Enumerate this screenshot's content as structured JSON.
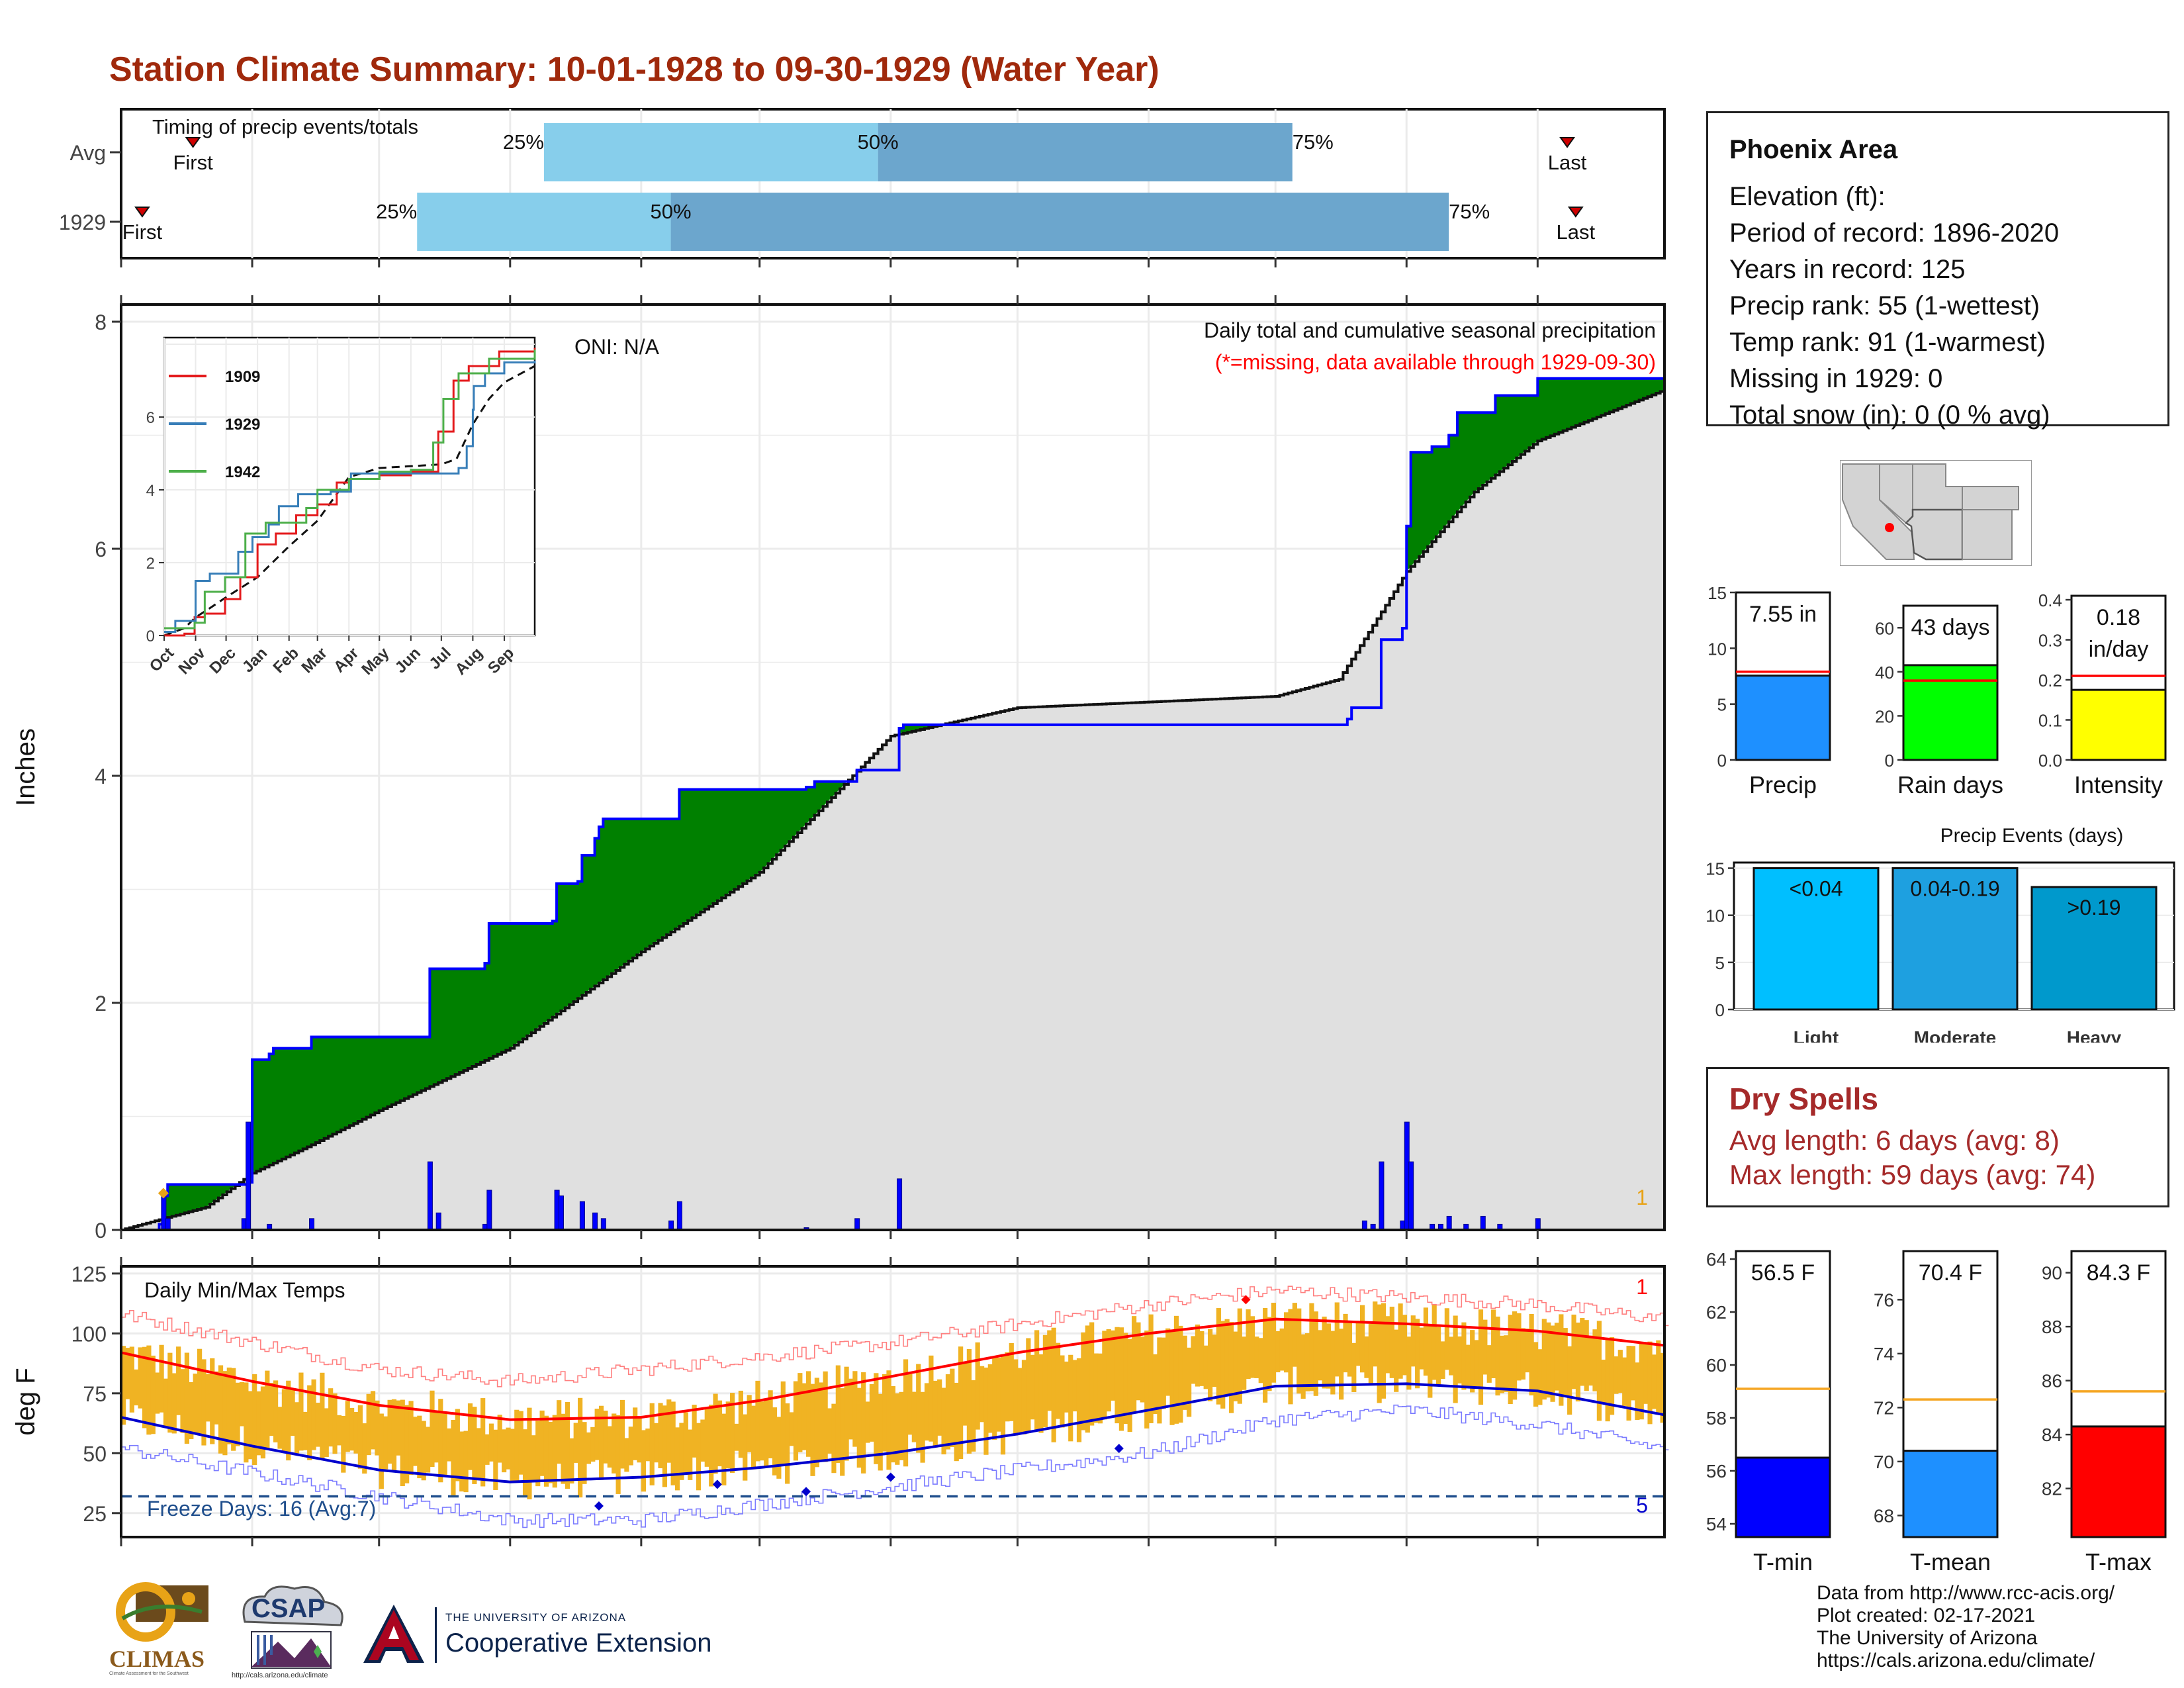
{
  "header": {
    "title": "Station Climate Summary: 10-01-1928 to 09-30-1929 (Water Year)"
  },
  "timing": {
    "panel_label": "Timing of precip events/totals",
    "rows": [
      {
        "label": "Avg",
        "first_label": "First",
        "last_label": "Last",
        "first_day": 17,
        "last_day": 342,
        "p25_day": 100,
        "p50_day": 179,
        "p75_day": 277,
        "p25": "25%",
        "p50": "50%",
        "p75": "75%"
      },
      {
        "label": "1929",
        "first_label": "First",
        "last_label": "Last",
        "first_day": 5,
        "last_day": 344,
        "p25_day": 70,
        "p50_day": 130,
        "p75_day": 314,
        "p25": "25%",
        "p50": "50%",
        "p75": "75%"
      }
    ]
  },
  "colors": {
    "light_blue": "#87ceeb",
    "mid_blue": "#6ca6cd",
    "above_fill": "#008000",
    "below_fill": "#7f5200",
    "obs_line": "#0000ff",
    "avg_fill": "#e0e0e0",
    "temp_band": "#f0b323",
    "max_line": "#ff0000",
    "min_line": "#0000cd",
    "title_color": "#a0290c",
    "dry_color": "#a52a2a"
  },
  "chart_data": [
    {
      "type": "area",
      "name": "precip",
      "ylabel": "Inches",
      "ylim": [
        0,
        8
      ],
      "yticks": [
        "0",
        "2",
        "4",
        "6",
        "8"
      ],
      "month_labels": [
        "Oct",
        "Nov",
        "Dec",
        "Jan",
        "Feb",
        "Mar",
        "Apr",
        "May",
        "Jun",
        "Jul",
        "Aug",
        "Sep"
      ],
      "month_start_days": [
        0,
        31,
        61,
        92,
        123,
        151,
        182,
        212,
        243,
        273,
        304,
        335
      ],
      "oni": "ONI: N/A",
      "note1": "Daily total and cumulative seasonal precipitation",
      "note2": "(*=missing, data available through 1929-09-30)",
      "corner_label": "1",
      "cumulative_obs": [
        [
          0,
          0
        ],
        [
          9,
          0.05
        ],
        [
          10,
          0.3
        ],
        [
          11,
          0.4
        ],
        [
          29,
          0.4
        ],
        [
          30,
          0.42
        ],
        [
          31,
          1.5
        ],
        [
          35,
          1.55
        ],
        [
          36,
          1.6
        ],
        [
          44,
          1.6
        ],
        [
          45,
          1.7
        ],
        [
          72,
          1.7
        ],
        [
          73,
          2.3
        ],
        [
          86,
          2.35
        ],
        [
          87,
          2.7
        ],
        [
          102,
          2.72
        ],
        [
          103,
          3.05
        ],
        [
          108,
          3.07
        ],
        [
          109,
          3.3
        ],
        [
          112,
          3.45
        ],
        [
          113,
          3.55
        ],
        [
          114,
          3.62
        ],
        [
          131,
          3.62
        ],
        [
          132,
          3.88
        ],
        [
          162,
          3.9
        ],
        [
          164,
          3.95
        ],
        [
          174,
          4.05
        ],
        [
          184,
          4.42
        ],
        [
          185,
          4.45
        ],
        [
          290,
          4.5
        ],
        [
          291,
          4.6
        ],
        [
          297,
          4.6
        ],
        [
          298,
          5.2
        ],
        [
          303,
          5.3
        ],
        [
          304,
          6.2
        ],
        [
          305,
          6.85
        ],
        [
          310,
          6.9
        ],
        [
          314,
          7.0
        ],
        [
          316,
          7.2
        ],
        [
          325,
          7.35
        ],
        [
          335,
          7.5
        ],
        [
          365,
          7.55
        ]
      ],
      "cumulative_avg": [
        [
          0,
          0
        ],
        [
          10,
          0.1
        ],
        [
          20,
          0.2
        ],
        [
          31,
          0.5
        ],
        [
          45,
          0.75
        ],
        [
          61,
          1.05
        ],
        [
          92,
          1.6
        ],
        [
          123,
          2.45
        ],
        [
          151,
          3.15
        ],
        [
          182,
          4.35
        ],
        [
          212,
          4.6
        ],
        [
          243,
          4.65
        ],
        [
          273,
          4.7
        ],
        [
          288,
          4.85
        ],
        [
          304,
          5.8
        ],
        [
          320,
          6.5
        ],
        [
          335,
          6.95
        ],
        [
          365,
          7.4
        ]
      ],
      "daily_bars": [
        [
          10,
          0.3
        ],
        [
          11,
          0.1
        ],
        [
          29,
          0.1
        ],
        [
          30,
          0.95
        ],
        [
          35,
          0.05
        ],
        [
          45,
          0.1
        ],
        [
          73,
          0.6
        ],
        [
          75,
          0.15
        ],
        [
          86,
          0.05
        ],
        [
          87,
          0.35
        ],
        [
          103,
          0.35
        ],
        [
          104,
          0.3
        ],
        [
          109,
          0.25
        ],
        [
          112,
          0.15
        ],
        [
          114,
          0.1
        ],
        [
          130,
          0.08
        ],
        [
          132,
          0.25
        ],
        [
          162,
          0.02
        ],
        [
          174,
          0.1
        ],
        [
          184,
          0.45
        ],
        [
          294,
          0.08
        ],
        [
          296,
          0.05
        ],
        [
          298,
          0.6
        ],
        [
          303,
          0.08
        ],
        [
          304,
          0.95
        ],
        [
          305,
          0.6
        ],
        [
          310,
          0.05
        ],
        [
          312,
          0.05
        ],
        [
          314,
          0.12
        ],
        [
          318,
          0.05
        ],
        [
          322,
          0.12
        ],
        [
          326,
          0.05
        ],
        [
          335,
          0.1
        ]
      ],
      "inset": {
        "ylim": [
          0,
          8
        ],
        "yticks": [
          "0",
          "2",
          "4",
          "6"
        ],
        "month_labels": [
          "Oct",
          "Nov",
          "Dec",
          "Jan",
          "Feb",
          "Mar",
          "Apr",
          "May",
          "Jun",
          "Jul",
          "Aug",
          "Sep"
        ],
        "series": [
          {
            "name": "1909",
            "color": "#e41a1c",
            "points": [
              [
                0,
                0
              ],
              [
                20,
                0.05
              ],
              [
                30,
                0.5
              ],
              [
                40,
                0.6
              ],
              [
                60,
                1.0
              ],
              [
                75,
                1.6
              ],
              [
                92,
                2.5
              ],
              [
                110,
                2.8
              ],
              [
                130,
                3.3
              ],
              [
                151,
                3.6
              ],
              [
                170,
                4.2
              ],
              [
                182,
                4.3
              ],
              [
                212,
                4.4
              ],
              [
                243,
                4.5
              ],
              [
                255,
                4.5
              ],
              [
                270,
                5.6
              ],
              [
                285,
                7.0
              ],
              [
                300,
                7.4
              ],
              [
                330,
                7.8
              ],
              [
                365,
                7.9
              ]
            ]
          },
          {
            "name": "1929",
            "color": "#377eb8",
            "points": [
              [
                0,
                0.1
              ],
              [
                9,
                0.1
              ],
              [
                11,
                0.4
              ],
              [
                30,
                0.4
              ],
              [
                31,
                1.5
              ],
              [
                45,
                1.7
              ],
              [
                73,
                2.3
              ],
              [
                87,
                2.7
              ],
              [
                103,
                3.05
              ],
              [
                113,
                3.55
              ],
              [
                132,
                3.88
              ],
              [
                164,
                3.95
              ],
              [
                184,
                4.45
              ],
              [
                290,
                4.6
              ],
              [
                298,
                5.2
              ],
              [
                304,
                6.2
              ],
              [
                305,
                6.85
              ],
              [
                316,
                7.2
              ],
              [
                335,
                7.5
              ],
              [
                365,
                7.55
              ]
            ]
          },
          {
            "name": "1942",
            "color": "#4daf4a",
            "points": [
              [
                0,
                0.2
              ],
              [
                30,
                0.35
              ],
              [
                40,
                1.2
              ],
              [
                60,
                1.6
              ],
              [
                80,
                2.8
              ],
              [
                100,
                3.1
              ],
              [
                140,
                3.5
              ],
              [
                151,
                4.0
              ],
              [
                182,
                4.3
              ],
              [
                212,
                4.5
              ],
              [
                243,
                4.55
              ],
              [
                265,
                5.3
              ],
              [
                275,
                6.5
              ],
              [
                290,
                7.2
              ],
              [
                320,
                7.6
              ],
              [
                365,
                7.85
              ]
            ]
          }
        ]
      }
    },
    {
      "type": "area",
      "name": "temperature",
      "title": "Daily Min/Max Temps",
      "ylabel": "deg F",
      "ylim": [
        15,
        128
      ],
      "yticks": [
        "25",
        "50",
        "75",
        "100",
        "125"
      ],
      "freeze_label": "Freeze Days: 16 (Avg:7)",
      "freeze_line": 32,
      "max_corner": "1",
      "min_corner": "5",
      "max_line_knots": [
        [
          0,
          92
        ],
        [
          31,
          80
        ],
        [
          61,
          70
        ],
        [
          92,
          64
        ],
        [
          123,
          65
        ],
        [
          151,
          72
        ],
        [
          182,
          82
        ],
        [
          212,
          92
        ],
        [
          243,
          100
        ],
        [
          273,
          106
        ],
        [
          304,
          104
        ],
        [
          335,
          101
        ],
        [
          365,
          95
        ]
      ],
      "min_line_knots": [
        [
          0,
          65
        ],
        [
          31,
          53
        ],
        [
          61,
          43
        ],
        [
          92,
          38
        ],
        [
          123,
          40
        ],
        [
          151,
          44
        ],
        [
          182,
          50
        ],
        [
          212,
          58
        ],
        [
          243,
          68
        ],
        [
          273,
          78
        ],
        [
          304,
          79
        ],
        [
          335,
          76
        ],
        [
          365,
          66
        ]
      ],
      "record_max_knots": [
        [
          0,
          108
        ],
        [
          61,
          85
        ],
        [
          92,
          80
        ],
        [
          123,
          85
        ],
        [
          182,
          96
        ],
        [
          243,
          112
        ],
        [
          273,
          118
        ],
        [
          304,
          115
        ],
        [
          335,
          112
        ],
        [
          365,
          106
        ]
      ],
      "record_min_knots": [
        [
          0,
          52
        ],
        [
          61,
          32
        ],
        [
          92,
          22
        ],
        [
          123,
          22
        ],
        [
          182,
          36
        ],
        [
          243,
          50
        ],
        [
          273,
          64
        ],
        [
          304,
          68
        ],
        [
          335,
          62
        ],
        [
          365,
          52
        ]
      ]
    },
    {
      "type": "bar",
      "name": "precip-total",
      "value_label": "7.55 in",
      "category": "Precip",
      "value": 7.55,
      "avg": 7.9,
      "ylim": [
        0,
        15
      ],
      "yticks": [
        "0",
        "5",
        "10",
        "15"
      ],
      "color": "#1e90ff"
    },
    {
      "type": "bar",
      "name": "rain-days",
      "value_label": "43 days",
      "category": "Rain days",
      "value": 43,
      "avg": 36,
      "ylim": [
        0,
        70
      ],
      "yticks": [
        "0",
        "20",
        "40",
        "60"
      ],
      "color": "#00ff00"
    },
    {
      "type": "bar",
      "name": "intensity",
      "value_label": "0.18",
      "value_label2": "in/day",
      "category": "Intensity",
      "value": 0.175,
      "avg": 0.21,
      "ylim": [
        0,
        0.41
      ],
      "yticks": [
        "0.0",
        "0.1",
        "0.2",
        "0.3",
        "0.4"
      ],
      "color": "#ffff00"
    },
    {
      "type": "bar",
      "name": "precip-events",
      "title": "Precip Events (days)",
      "categories": [
        "Light",
        "Moderate",
        "Heavy"
      ],
      "bar_labels": [
        "<0.04",
        "0.04-0.19",
        ">0.19"
      ],
      "values": [
        15,
        15,
        13
      ],
      "colors": [
        "#00bfff",
        "#1ea0e0",
        "#0099cc"
      ],
      "ylim": [
        0,
        15.6
      ],
      "yticks": [
        "0",
        "5",
        "10",
        "15"
      ]
    },
    {
      "type": "bar",
      "name": "tmin",
      "value_label": "56.5 F",
      "category": "T-min",
      "value": 56.5,
      "avg": 59.1,
      "ylim": [
        53.5,
        64.3
      ],
      "yticks": [
        "54",
        "56",
        "58",
        "60",
        "62",
        "64"
      ],
      "color": "#0000ff"
    },
    {
      "type": "bar",
      "name": "tmean",
      "value_label": "70.4 F",
      "category": "T-mean",
      "value": 70.4,
      "avg": 72.3,
      "ylim": [
        67.2,
        77.8
      ],
      "yticks": [
        "68",
        "70",
        "72",
        "74",
        "76"
      ],
      "color": "#1e90ff"
    },
    {
      "type": "bar",
      "name": "tmax",
      "value_label": "84.3 F",
      "category": "T-max",
      "value": 84.3,
      "avg": 85.6,
      "ylim": [
        80.2,
        90.8
      ],
      "yticks": [
        "82",
        "84",
        "86",
        "88",
        "90"
      ],
      "color": "#ff0000"
    }
  ],
  "station": {
    "name": "Phoenix Area",
    "elevation": "Elevation (ft):",
    "period": "Period of record: 1896-2020",
    "years": "Years in record: 125",
    "precip_rank": "Precip rank: 55 (1-wettest)",
    "temp_rank": "Temp rank: 91 (1-warmest)",
    "missing": "Missing in 1929: 0",
    "snow": "Total snow (in): 0 (0 % avg)"
  },
  "dry_spells": {
    "title": "Dry Spells",
    "avg": "Avg length: 6 days (avg: 8)",
    "max": "Max length: 59 days (avg: 74)"
  },
  "footer": {
    "line1": "Data from http://www.rcc-acis.org/",
    "line2": "Plot created: 02-17-2021",
    "line3": "The University of Arizona",
    "line4": "https://cals.arizona.edu/climate/"
  },
  "logos": {
    "climas": "CLIMAS",
    "climas_sub": "Climate Assessment for the Southwest",
    "csap": "CSAP",
    "csap_url": "http://cals.arizona.edu/climate",
    "ua_small": "THE UNIVERSITY OF ARIZONA",
    "ua_big": "Cooperative Extension"
  }
}
